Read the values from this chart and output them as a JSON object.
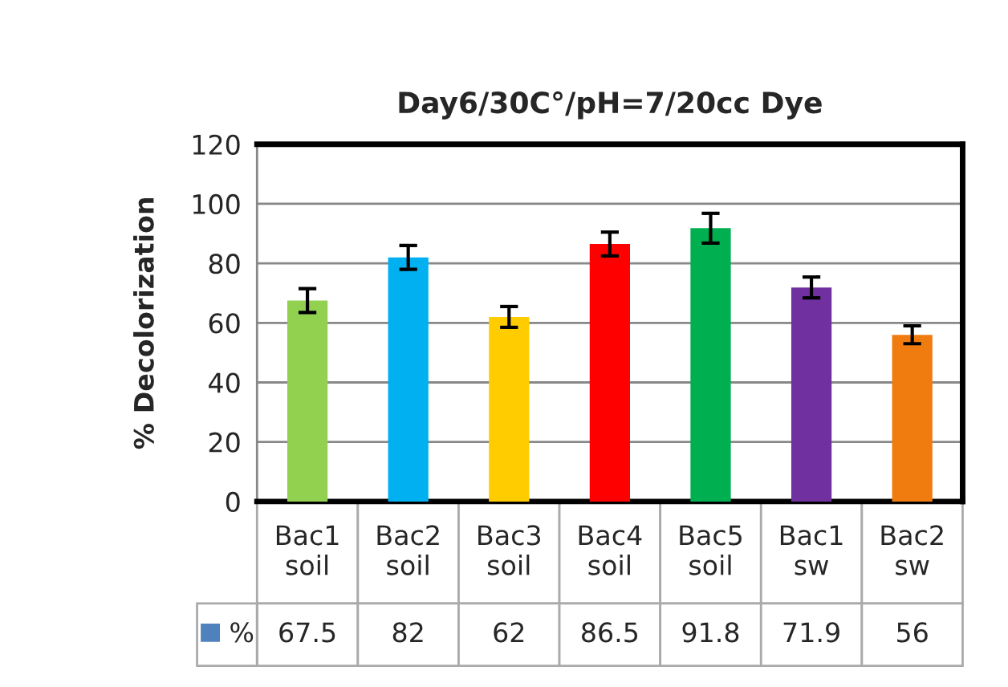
{
  "chart_data": {
    "type": "bar",
    "title": "Day6/30C°/pH=7/20cc Dye",
    "ylabel": "% Decolorization",
    "categories": [
      "Bac1 soil",
      "Bac2 soil",
      "Bac3 soil",
      "Bac4 soil",
      "Bac5 soil",
      "Bac1 sw",
      "Bac2 sw"
    ],
    "series": [
      {
        "name": "%",
        "color": "#4f81bd",
        "colors": [
          "#92d050",
          "#00b0f0",
          "#ffcc00",
          "#ff0000",
          "#00b050",
          "#7030a0",
          "#f07c10"
        ],
        "values": [
          67.5,
          82,
          62,
          86.5,
          91.8,
          71.9,
          56
        ],
        "errors": [
          4,
          4,
          3.5,
          4,
          5,
          3.5,
          3
        ]
      }
    ],
    "ylim": [
      0,
      120
    ],
    "yticks": [
      0,
      20,
      40,
      60,
      80,
      100,
      120
    ],
    "grid": "y",
    "data_labels": true,
    "legend": "bottom"
  }
}
